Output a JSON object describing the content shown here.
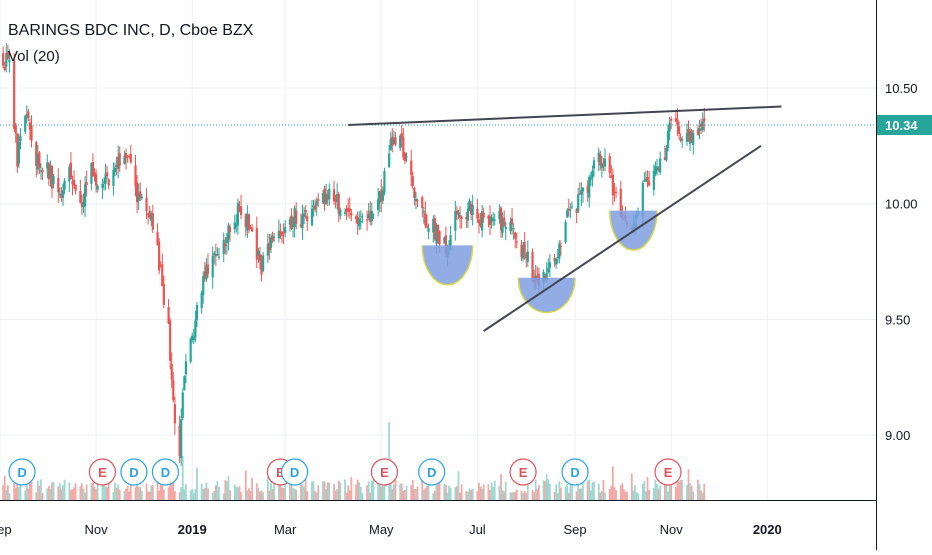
{
  "legend": {
    "title": "BARINGS BDC INC, D, Cboe BZX",
    "indicator": "Vol (20)"
  },
  "colors": {
    "up": "#26a69a",
    "down": "#ef5350",
    "up_volume": "#9fd8d1",
    "down_volume": "#f4a9a7",
    "last_price": "#26a69a",
    "trendline": "#434651",
    "pattern_fill": "#7f9de0",
    "pattern_edge": "#d8d84a",
    "dividend": "#2aa3e6",
    "earnings": "#e2525c",
    "grid": "#eef0f3"
  },
  "chart_data": {
    "type": "candlestick",
    "x_axis": {
      "labels": [
        "Sep",
        "Nov",
        "2019",
        "Mar",
        "May",
        "Jul",
        "Sep",
        "Nov",
        "2020"
      ],
      "label_dates": [
        "2018-09-01",
        "2018-11-01",
        "2019-01-01",
        "2019-03-01",
        "2019-05-01",
        "2019-07-01",
        "2019-09-01",
        "2019-11-01",
        "2020-01-01"
      ],
      "range": [
        "2018-09-01",
        "2020-03-10"
      ]
    },
    "y_axis": {
      "ticks": [
        9.0,
        9.5,
        10.0,
        10.5
      ],
      "tick_labels": [
        "9.00",
        "9.50",
        "10.00",
        "10.50"
      ],
      "range": [
        8.72,
        10.88
      ],
      "position": "right"
    },
    "last_price": 10.34,
    "last_price_label": "10.34",
    "price_path": [
      [
        "2018-09-01",
        10.66
      ],
      [
        "2018-09-07",
        10.58
      ],
      [
        "2018-09-12",
        10.2
      ],
      [
        "2018-09-18",
        10.42
      ],
      [
        "2018-09-24",
        10.18
      ],
      [
        "2018-10-01",
        10.15
      ],
      [
        "2018-10-08",
        10.05
      ],
      [
        "2018-10-15",
        10.12
      ],
      [
        "2018-10-22",
        9.98
      ],
      [
        "2018-10-29",
        10.15
      ],
      [
        "2018-11-05",
        10.08
      ],
      [
        "2018-11-12",
        10.12
      ],
      [
        "2018-11-19",
        10.25
      ],
      [
        "2018-11-26",
        10.05
      ],
      [
        "2018-12-03",
        10.0
      ],
      [
        "2018-12-07",
        9.9
      ],
      [
        "2018-12-12",
        9.7
      ],
      [
        "2018-12-17",
        9.45
      ],
      [
        "2018-12-21",
        9.05
      ],
      [
        "2018-12-24",
        8.92
      ],
      [
        "2018-12-27",
        9.25
      ],
      [
        "2019-01-03",
        9.5
      ],
      [
        "2019-01-10",
        9.7
      ],
      [
        "2019-01-17",
        9.8
      ],
      [
        "2019-01-24",
        9.88
      ],
      [
        "2019-01-31",
        9.98
      ],
      [
        "2019-02-07",
        9.9
      ],
      [
        "2019-02-14",
        9.72
      ],
      [
        "2019-02-21",
        9.85
      ],
      [
        "2019-02-28",
        9.9
      ],
      [
        "2019-03-07",
        9.95
      ],
      [
        "2019-03-14",
        9.92
      ],
      [
        "2019-03-21",
        9.98
      ],
      [
        "2019-03-28",
        10.05
      ],
      [
        "2019-04-04",
        10.0
      ],
      [
        "2019-04-11",
        9.95
      ],
      [
        "2019-04-18",
        9.92
      ],
      [
        "2019-04-25",
        9.97
      ],
      [
        "2019-05-02",
        10.05
      ],
      [
        "2019-05-07",
        10.3
      ],
      [
        "2019-05-14",
        10.25
      ],
      [
        "2019-05-21",
        10.05
      ],
      [
        "2019-05-28",
        9.95
      ],
      [
        "2019-06-04",
        9.88
      ],
      [
        "2019-06-11",
        9.8
      ],
      [
        "2019-06-18",
        9.95
      ],
      [
        "2019-06-25",
        9.98
      ],
      [
        "2019-07-02",
        9.92
      ],
      [
        "2019-07-09",
        9.95
      ],
      [
        "2019-07-16",
        9.93
      ],
      [
        "2019-07-23",
        9.9
      ],
      [
        "2019-07-30",
        9.8
      ],
      [
        "2019-08-06",
        9.68
      ],
      [
        "2019-08-13",
        9.66
      ],
      [
        "2019-08-20",
        9.78
      ],
      [
        "2019-08-27",
        9.95
      ],
      [
        "2019-09-03",
        10.0
      ],
      [
        "2019-09-10",
        10.1
      ],
      [
        "2019-09-17",
        10.2
      ],
      [
        "2019-09-24",
        10.1
      ],
      [
        "2019-10-01",
        9.92
      ],
      [
        "2019-10-08",
        9.88
      ],
      [
        "2019-10-15",
        10.1
      ],
      [
        "2019-10-22",
        10.12
      ],
      [
        "2019-10-29",
        10.22
      ],
      [
        "2019-11-01",
        10.38
      ],
      [
        "2019-11-08",
        10.3
      ],
      [
        "2019-11-15",
        10.28
      ],
      [
        "2019-11-22",
        10.34
      ]
    ],
    "volume_spikes": [
      [
        "2019-05-06",
        0.97
      ],
      [
        "2019-04-30",
        0.45
      ],
      [
        "2018-12-26",
        0.55
      ],
      [
        "2019-02-22",
        0.32
      ],
      [
        "2018-09-14",
        0.3
      ]
    ],
    "trendlines": [
      {
        "from": [
          "2019-04-10",
          10.34
        ],
        "to": [
          "2020-01-10",
          10.42
        ]
      },
      {
        "from": [
          "2019-07-05",
          9.45
        ],
        "to": [
          "2019-12-28",
          10.25
        ]
      }
    ],
    "patterns": [
      {
        "center": "2019-06-12",
        "top": 9.82,
        "bottom": 9.65,
        "half_width_days": 16
      },
      {
        "center": "2019-08-14",
        "top": 9.68,
        "bottom": 9.53,
        "half_width_days": 18
      },
      {
        "center": "2019-10-08",
        "top": 9.97,
        "bottom": 9.8,
        "half_width_days": 15
      }
    ],
    "events": [
      {
        "type": "D",
        "label": "D",
        "date": "2018-09-15"
      },
      {
        "type": "E",
        "label": "E",
        "date": "2018-11-05"
      },
      {
        "type": "D",
        "label": "D",
        "date": "2018-11-25"
      },
      {
        "type": "D",
        "label": "D",
        "date": "2018-12-15"
      },
      {
        "type": "E",
        "label": "E",
        "date": "2019-02-26"
      },
      {
        "type": "D",
        "label": "D",
        "date": "2019-03-07"
      },
      {
        "type": "E",
        "label": "E",
        "date": "2019-05-03"
      },
      {
        "type": "D",
        "label": "D",
        "date": "2019-06-02"
      },
      {
        "type": "E",
        "label": "E",
        "date": "2019-07-30"
      },
      {
        "type": "D",
        "label": "D",
        "date": "2019-09-01"
      },
      {
        "type": "E",
        "label": "E",
        "date": "2019-10-30"
      }
    ],
    "grid": true,
    "legend_position": "top-left"
  }
}
